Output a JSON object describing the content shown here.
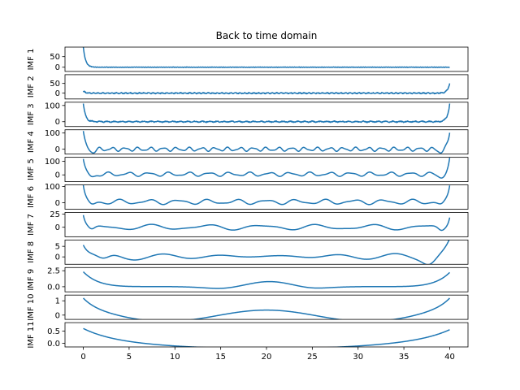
{
  "chart_data": {
    "type": "line",
    "title": "Back to time domain",
    "x_range": [
      -2,
      42
    ],
    "x_ticks": [
      0,
      5,
      10,
      15,
      20,
      25,
      30,
      35,
      40
    ],
    "line_color": "#1f77b4",
    "panels": [
      {
        "ylabel": "IMF 1",
        "ylim": [
          -20,
          95
        ],
        "yticks": [
          0,
          50
        ],
        "ytick_labels": [
          "0",
          "50"
        ],
        "kind": "noise",
        "base": 0,
        "amp": 1.2,
        "left_spike": 95,
        "right_spike": 0,
        "period": 0.25
      },
      {
        "ylabel": "IMF 2",
        "ylim": [
          -30,
          95
        ],
        "yticks": [
          0,
          50
        ],
        "ytick_labels": [
          "0",
          "50"
        ],
        "kind": "noise",
        "base": 0,
        "amp": 3,
        "left_spike": 10,
        "right_spike": 50,
        "period": 0.5
      },
      {
        "ylabel": "IMF 3",
        "ylim": [
          -30,
          120
        ],
        "yticks": [
          0,
          100
        ],
        "ytick_labels": [
          "0",
          "100"
        ],
        "kind": "noise",
        "base": 0,
        "amp": 4,
        "left_spike": 110,
        "right_spike": 110,
        "period": 0.8
      },
      {
        "ylabel": "IMF 4",
        "ylim": [
          -30,
          120
        ],
        "yticks": [
          0,
          100
        ],
        "ytick_labels": [
          "0",
          "100"
        ],
        "kind": "wave",
        "base": 0,
        "amp": 12,
        "left_spike": 110,
        "right_spike": 110,
        "period": 1.4
      },
      {
        "ylabel": "IMF 5",
        "ylim": [
          -50,
          130
        ],
        "yticks": [
          0,
          100
        ],
        "ytick_labels": [
          "0",
          "100"
        ],
        "kind": "wave",
        "base": 5,
        "amp": 15,
        "left_spike": 110,
        "right_spike": 110,
        "period": 2.2
      },
      {
        "ylabel": "IMF 6",
        "ylim": [
          -40,
          110
        ],
        "yticks": [
          0,
          100
        ],
        "ytick_labels": [
          "0",
          "100"
        ],
        "kind": "wave",
        "base": 5,
        "amp": 15,
        "left_spike": 100,
        "right_spike": 100,
        "period": 3.2
      },
      {
        "ylabel": "IMF 7",
        "ylim": [
          -18,
          28
        ],
        "yticks": [
          0,
          25
        ],
        "ytick_labels": [
          "0",
          "25"
        ],
        "kind": "wave",
        "base": 0,
        "amp": 5,
        "left_spike": 22,
        "right_spike": 22,
        "period": 6.0
      },
      {
        "ylabel": "IMF 8",
        "ylim": [
          -3.5,
          8
        ],
        "yticks": [
          0,
          5
        ],
        "ytick_labels": [
          "0",
          "5"
        ],
        "kind": "smooth8"
      },
      {
        "ylabel": "IMF 9",
        "ylim": [
          -0.8,
          3.0
        ],
        "yticks": [
          0,
          2.5
        ],
        "ytick_labels": [
          "0.0",
          "2.5"
        ],
        "kind": "smooth9"
      },
      {
        "ylabel": "IMF 10",
        "ylim": [
          -0.3,
          1.4
        ],
        "yticks": [
          0,
          1
        ],
        "ytick_labels": [
          "0",
          "1"
        ],
        "kind": "smooth10"
      },
      {
        "ylabel": "IMF 11",
        "ylim": [
          -0.15,
          0.85
        ],
        "yticks": [
          0,
          0.5
        ],
        "ytick_labels": [
          "0.0",
          "0.5"
        ],
        "kind": "smooth11"
      }
    ]
  }
}
